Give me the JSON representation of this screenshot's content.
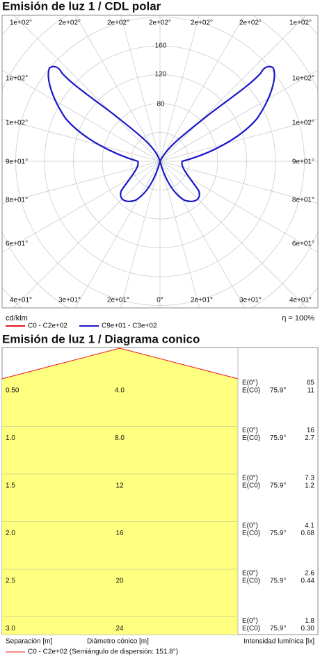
{
  "polar": {
    "title": "Emisión de luz 1 / CDL polar",
    "angle_labels": {
      "top": [
        "1e+02°",
        "2e+02°",
        "2e+02°",
        "2e+02°",
        "2e+02°",
        "2e+02°",
        "1e+02°"
      ],
      "left": [
        "1e+02°",
        "1e+02°",
        "9e+01°",
        "8e+01°",
        "6e+01°"
      ],
      "right": [
        "1e+02°",
        "1e+02°",
        "9e+01°",
        "8e+01°",
        "6e+01°"
      ],
      "bottom": [
        "4e+01°",
        "3e+01°",
        "2e+01°",
        "0°",
        "2e+01°",
        "3e+01°",
        "4e+01°"
      ]
    },
    "radial_labels": [
      "160",
      "120",
      "80"
    ],
    "unit": "cd/klm",
    "efficiency": "η = 100%",
    "legend": [
      {
        "label": "C0 - C2e+02",
        "color": "#e8141b"
      },
      {
        "label": "C9e+01 - C3e+02",
        "color": "#1a16c8"
      }
    ]
  },
  "conic": {
    "title": "Emisión de luz 1 / Diagrama conico",
    "rows": [
      {
        "separation": "0.50",
        "diameter": "4.0",
        "e0_label": "E(0°)",
        "ec0_label": "E(C0)",
        "angle": "75.9°",
        "e0": "65",
        "ec0": "11"
      },
      {
        "separation": "1.0",
        "diameter": "8.0",
        "e0_label": "E(0°)",
        "ec0_label": "E(C0)",
        "angle": "75.9°",
        "e0": "16",
        "ec0": "2.7"
      },
      {
        "separation": "1.5",
        "diameter": "12",
        "e0_label": "E(0°)",
        "ec0_label": "E(C0)",
        "angle": "75.9°",
        "e0": "7.3",
        "ec0": "1.2"
      },
      {
        "separation": "2.0",
        "diameter": "16",
        "e0_label": "E(0°)",
        "ec0_label": "E(C0)",
        "angle": "75.9°",
        "e0": "4.1",
        "ec0": "0.68"
      },
      {
        "separation": "2.5",
        "diameter": "20",
        "e0_label": "E(0°)",
        "ec0_label": "E(C0)",
        "angle": "75.9°",
        "e0": "2.6",
        "ec0": "0.44"
      },
      {
        "separation": "3.0",
        "diameter": "24",
        "e0_label": "E(0°)",
        "ec0_label": "E(C0)",
        "angle": "75.9°",
        "e0": "1.8",
        "ec0": "0.30"
      }
    ],
    "footer": {
      "separation": "Separación [m]",
      "diameter": "Diámetro cónico [m]",
      "intensity": "Intensidad lumínica [lx]"
    },
    "legend": "C0 - C2e+02 (Semiángulo de dispersión: 151.8°)"
  }
}
